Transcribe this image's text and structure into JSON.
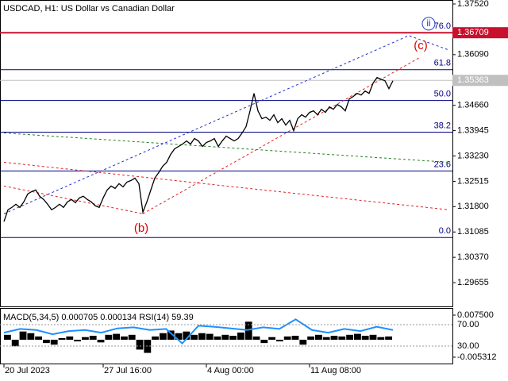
{
  "chart_data": {
    "type": "line",
    "title": "USDCAD, H1:  US Dollar vs Canadian Dollar",
    "series": [
      {
        "name": "USDCAD",
        "color": "#000000",
        "values": [
          1.31377,
          1.31712,
          1.31779,
          1.31868,
          1.31779,
          1.31935,
          1.32159,
          1.32226,
          1.3227,
          1.32092,
          1.32002,
          1.31868,
          1.31712,
          1.31779,
          1.31868,
          1.31779,
          1.31935,
          1.32002,
          1.31913,
          1.32047,
          1.32092,
          1.32002,
          1.31935,
          1.31824,
          1.31779,
          1.32047,
          1.3227,
          1.32382,
          1.32315,
          1.32449,
          1.3236,
          1.32494,
          1.32538,
          1.32605,
          1.32449,
          1.31645,
          1.31935,
          1.3227,
          1.32605,
          1.32762,
          1.32941,
          1.33052,
          1.33276,
          1.33432,
          1.33499,
          1.33566,
          1.33655,
          1.33566,
          1.33722,
          1.33655,
          1.33499,
          1.3361,
          1.33655,
          1.33722,
          1.33499,
          1.33655,
          1.3379,
          1.33722,
          1.33655,
          1.33722,
          1.33879,
          1.34058,
          1.34504,
          1.34996,
          1.34504,
          1.34281,
          1.34326,
          1.34236,
          1.34393,
          1.34169,
          1.34281,
          1.34102,
          1.34236,
          1.33946,
          1.34281,
          1.34393,
          1.34326,
          1.3446,
          1.34504,
          1.34393,
          1.34549,
          1.3446,
          1.34616,
          1.34549,
          1.34683,
          1.34616,
          1.34504,
          1.34839,
          1.34907,
          1.34996,
          1.34951,
          1.35063,
          1.34996,
          1.35286,
          1.35443,
          1.35398,
          1.35353,
          1.3513,
          1.35353
        ]
      }
    ],
    "xlim": [
      -1,
      113
    ],
    "xticks": [
      {
        "value": 0,
        "label": "20 Jul 2023"
      },
      {
        "value": 25,
        "label": "27 Jul 16:00"
      },
      {
        "value": 51,
        "label": "4 Aug 00:00"
      },
      {
        "value": 77,
        "label": "11 Aug 08:00"
      }
    ],
    "ylim": [
      1.28985,
      1.37632
    ],
    "yticks": [
      {
        "value": 1.3752,
        "label": "1.37520"
      },
      {
        "value": 1.3609,
        "label": "1.36090"
      },
      {
        "value": 1.3466,
        "label": "1.34660"
      },
      {
        "value": 1.33945,
        "label": "1.33945"
      },
      {
        "value": 1.3323,
        "label": "1.33230"
      },
      {
        "value": 1.32515,
        "label": "1.32515"
      },
      {
        "value": 1.318,
        "label": "1.31800"
      },
      {
        "value": 1.31085,
        "label": "1.31085"
      },
      {
        "value": 1.3037,
        "label": "1.30370"
      },
      {
        "value": 1.29655,
        "label": "1.29655"
      }
    ],
    "price_labels": [
      {
        "value": 1.36709,
        "label": "1.36709",
        "color": "#c8102e"
      },
      {
        "value": 1.35363,
        "label": "1.35363",
        "color": "#c0c0c0"
      }
    ],
    "fib_color": "#000080",
    "fib_levels": [
      {
        "value": 1.36709,
        "label": "76.0"
      },
      {
        "value": 1.35666,
        "label": "61.8"
      },
      {
        "value": 1.34795,
        "label": "50.0"
      },
      {
        "value": 1.33901,
        "label": "38.2"
      },
      {
        "value": 1.32807,
        "label": "23.6"
      },
      {
        "value": 1.30929,
        "label": "0.0"
      }
    ],
    "wave_labels": [
      {
        "label": "(b)",
        "x": 34.6,
        "y": 1.31176,
        "color": "#e00000"
      },
      {
        "label": "(c)",
        "x": 105,
        "y": 1.36336,
        "color": "#e00000"
      },
      {
        "label": "ii",
        "x": 107,
        "y": 1.36962,
        "color": "#2040c0"
      }
    ],
    "trendlines": [
      {
        "color": "#2030d0",
        "points": [
          [
            0,
            1.316
          ],
          [
            102,
            1.36627
          ],
          [
            112,
            1.36225
          ]
        ]
      },
      {
        "color": "#e02020",
        "points": [
          [
            35,
            1.316
          ],
          [
            105,
            1.36024
          ]
        ]
      },
      {
        "color": "#e02020",
        "points": [
          [
            0,
            1.32382
          ],
          [
            35,
            1.316
          ]
        ]
      },
      {
        "color": "#e02020",
        "points": [
          [
            0,
            1.33052
          ],
          [
            112,
            1.31712
          ]
        ]
      },
      {
        "color": "#208020",
        "points": [
          [
            0,
            1.33879
          ],
          [
            112,
            1.33052
          ]
        ]
      }
    ],
    "indicator": {
      "title": "MACD(5,34,5) 0.000705 0.000134 RSI(14) 59.39",
      "ylim": [
        -0.007246,
        0.009675
      ],
      "yticks": [
        {
          "value": 0.0075,
          "label": "0.007500"
        },
        {
          "value": -0.005312,
          "label": "-0.005312"
        }
      ],
      "macd_color": "#000000",
      "macd": [
        0.0015,
        -0.002,
        0.0025,
        0.002,
        0.001,
        -0.001,
        -0.0015,
        0.0005,
        0.001,
        -0.0005,
        0.0008,
        0.0012,
        -0.0008,
        0.0015,
        0.0018,
        0.001,
        0.0015,
        -0.003,
        -0.004,
        0.001,
        0.002,
        0.0028,
        0.002,
        0.0025,
        0.0015,
        0.002,
        0.0018,
        0.001,
        0.0015,
        0.0012,
        0.0022,
        0.0055,
        0.001,
        -0.001,
        0.0008,
        -0.0005,
        0.001,
        0.0012,
        -0.0015,
        0.001,
        0.0015,
        0.0008,
        0.0012,
        0.001,
        0.0015,
        0.0018,
        0.0012,
        0.0015,
        0.0008,
        0.001
      ],
      "rsi_color": "#1e90ff",
      "rsi_ylim": [
        -2.6,
        101.1
      ],
      "rsi_ticks": [
        {
          "value": 70,
          "label": "70.00"
        },
        {
          "value": 30,
          "label": "30.00"
        }
      ],
      "rsi": [
        55,
        62,
        60,
        52,
        58,
        60,
        55,
        63,
        65,
        60,
        62,
        35,
        68,
        66,
        63,
        60,
        65,
        62,
        80,
        60,
        55,
        62,
        58,
        66,
        60
      ]
    }
  }
}
